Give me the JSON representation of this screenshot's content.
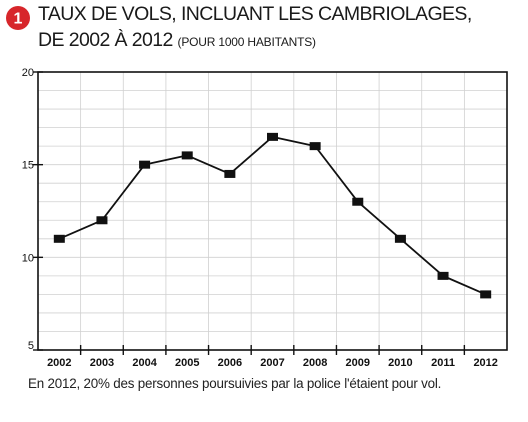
{
  "header": {
    "badge_number": "1",
    "badge_color": "#d7262b",
    "title_line1": "TAUX DE VOLS, INCLUANT LES CAMBRIOLAGES,",
    "title_line2_main": "DE 2002 À 2012",
    "title_line2_note": "(POUR 1000 HABITANTS)"
  },
  "chart_data": {
    "type": "line",
    "categories": [
      "2002",
      "2003",
      "2004",
      "2005",
      "2006",
      "2007",
      "2008",
      "2009",
      "2010",
      "2011",
      "2012"
    ],
    "series": [
      {
        "values": [
          11,
          12,
          15,
          15.5,
          14.5,
          16.5,
          16,
          13,
          11,
          9,
          8
        ]
      }
    ],
    "ylim": [
      5,
      20
    ],
    "yticks": [
      "5",
      "10",
      "15",
      "20"
    ],
    "grid": true,
    "grid_color": "#d0d0d0",
    "line_color": "#111111",
    "marker": "square"
  },
  "footnote": "En 2012, 20% des personnes poursuivies par la police l'étaient pour vol."
}
